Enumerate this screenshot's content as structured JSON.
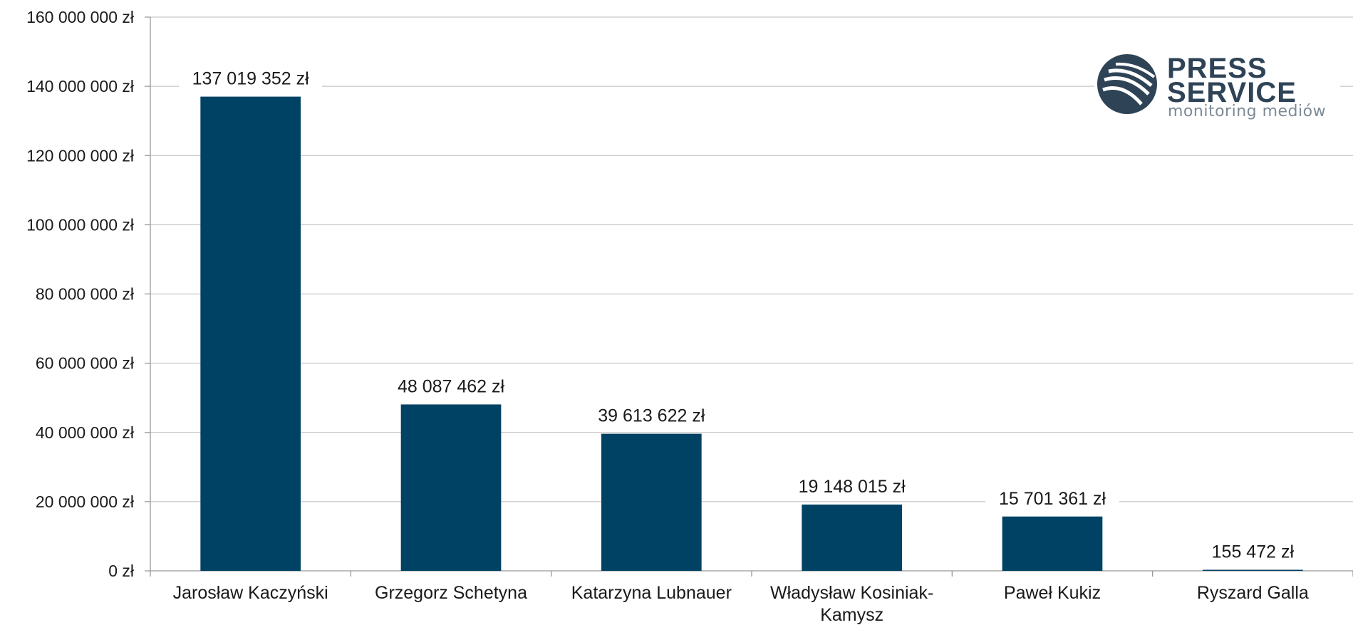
{
  "chart_data": {
    "type": "bar",
    "title": "",
    "xlabel": "",
    "ylabel": "",
    "categories": [
      "Jarosław Kaczyński",
      "Grzegorz Schetyna",
      "Katarzyna Lubnauer",
      "Władysław Kosiniak-Kamysz",
      "Paweł Kukiz",
      "Ryszard Galla"
    ],
    "category_lines": [
      [
        "Jarosław Kaczyński"
      ],
      [
        "Grzegorz Schetyna"
      ],
      [
        "Katarzyna Lubnauer"
      ],
      [
        "Władysław Kosiniak-",
        "Kamysz"
      ],
      [
        "Paweł Kukiz"
      ],
      [
        "Ryszard Galla"
      ]
    ],
    "values": [
      137019352,
      48087462,
      39613622,
      19148015,
      15701361,
      155472
    ],
    "value_labels": [
      "137 019 352 zł",
      "48 087 462 zł",
      "39 613 622 zł",
      "19 148 015 zł",
      "15 701 361 zł",
      "155 472 zł"
    ],
    "ylim": [
      0,
      160000000
    ],
    "yticks": [
      0,
      20000000,
      40000000,
      60000000,
      80000000,
      100000000,
      120000000,
      140000000,
      160000000
    ],
    "ytick_labels": [
      "0 zł",
      "20 000 000 zł",
      "40 000 000 zł",
      "60 000 000 zł",
      "80 000 000 zł",
      "100 000 000 zł",
      "120 000 000 zł",
      "140 000 000 zł",
      "160 000 000 zł"
    ],
    "grid": true,
    "bar_color": "#004263",
    "grid_color": "#c6c6c6"
  },
  "logo": {
    "line1": "PRESS",
    "line2": "SERVICE",
    "tagline": "monitoring mediów",
    "color": "#2f4357"
  }
}
